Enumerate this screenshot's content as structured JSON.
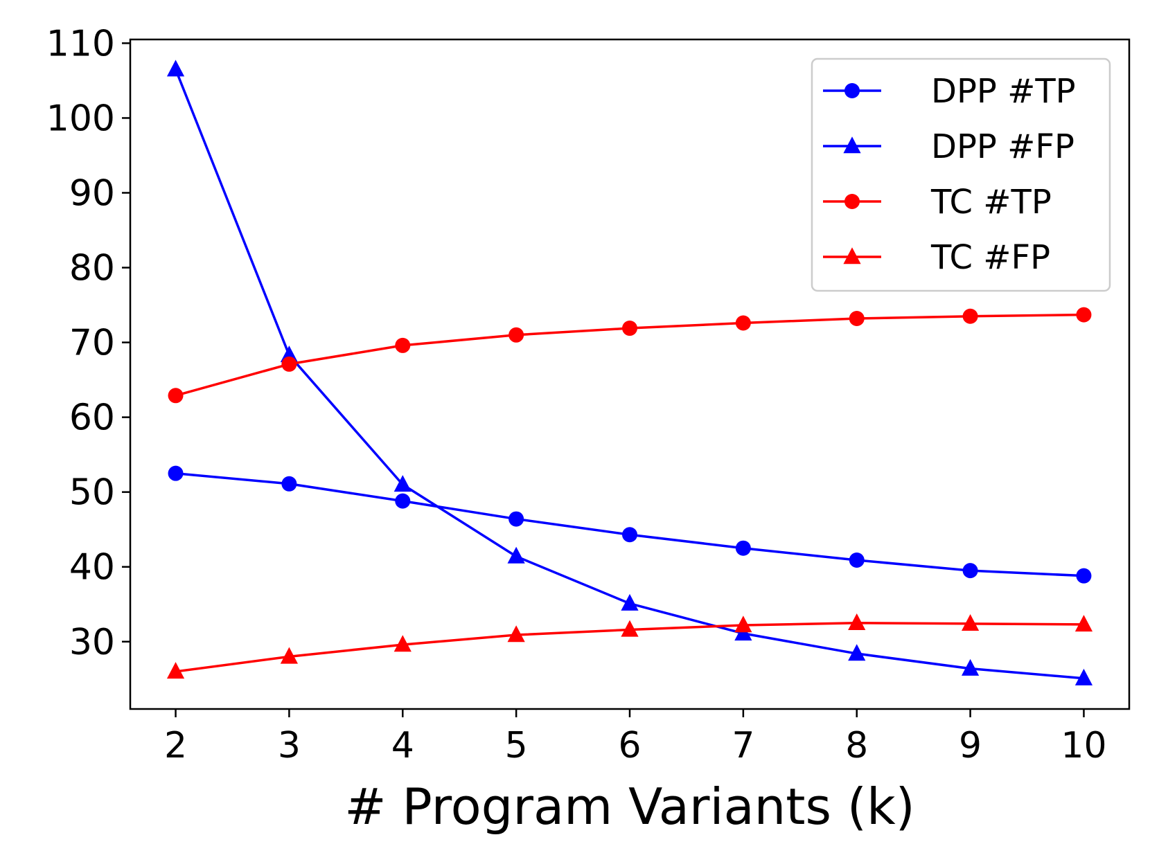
{
  "chart_data": {
    "type": "line",
    "title": "",
    "xlabel": "# Program Variants (k)",
    "ylabel": "",
    "x": [
      2,
      3,
      4,
      5,
      6,
      7,
      8,
      9,
      10
    ],
    "xlim": [
      1.6,
      10.4
    ],
    "ylim": [
      21,
      110.5
    ],
    "xticks": [
      "2",
      "3",
      "4",
      "5",
      "6",
      "7",
      "8",
      "9",
      "10"
    ],
    "yticks": [
      "30",
      "40",
      "50",
      "60",
      "70",
      "80",
      "90",
      "100",
      "110"
    ],
    "yticks_values": [
      30,
      40,
      50,
      60,
      70,
      80,
      90,
      100,
      110
    ],
    "legend_position": "top-right",
    "series": [
      {
        "name": "DPP #TP",
        "color": "#0000ff",
        "marker": "circle",
        "values": [
          52.5,
          51.1,
          48.8,
          46.4,
          44.3,
          42.5,
          40.9,
          39.5,
          38.8
        ]
      },
      {
        "name": "DPP #FP",
        "color": "#0000ff",
        "marker": "triangle",
        "values": [
          106.5,
          68.3,
          51.0,
          41.4,
          35.1,
          31.1,
          28.4,
          26.4,
          25.1
        ]
      },
      {
        "name": "TC #TP",
        "color": "#ff0000",
        "marker": "circle",
        "values": [
          62.9,
          67.1,
          69.6,
          71.0,
          71.9,
          72.6,
          73.2,
          73.5,
          73.7
        ]
      },
      {
        "name": "TC #FP",
        "color": "#ff0000",
        "marker": "triangle",
        "values": [
          26.0,
          28.0,
          29.6,
          30.9,
          31.6,
          32.2,
          32.5,
          32.4,
          32.3
        ]
      }
    ]
  }
}
